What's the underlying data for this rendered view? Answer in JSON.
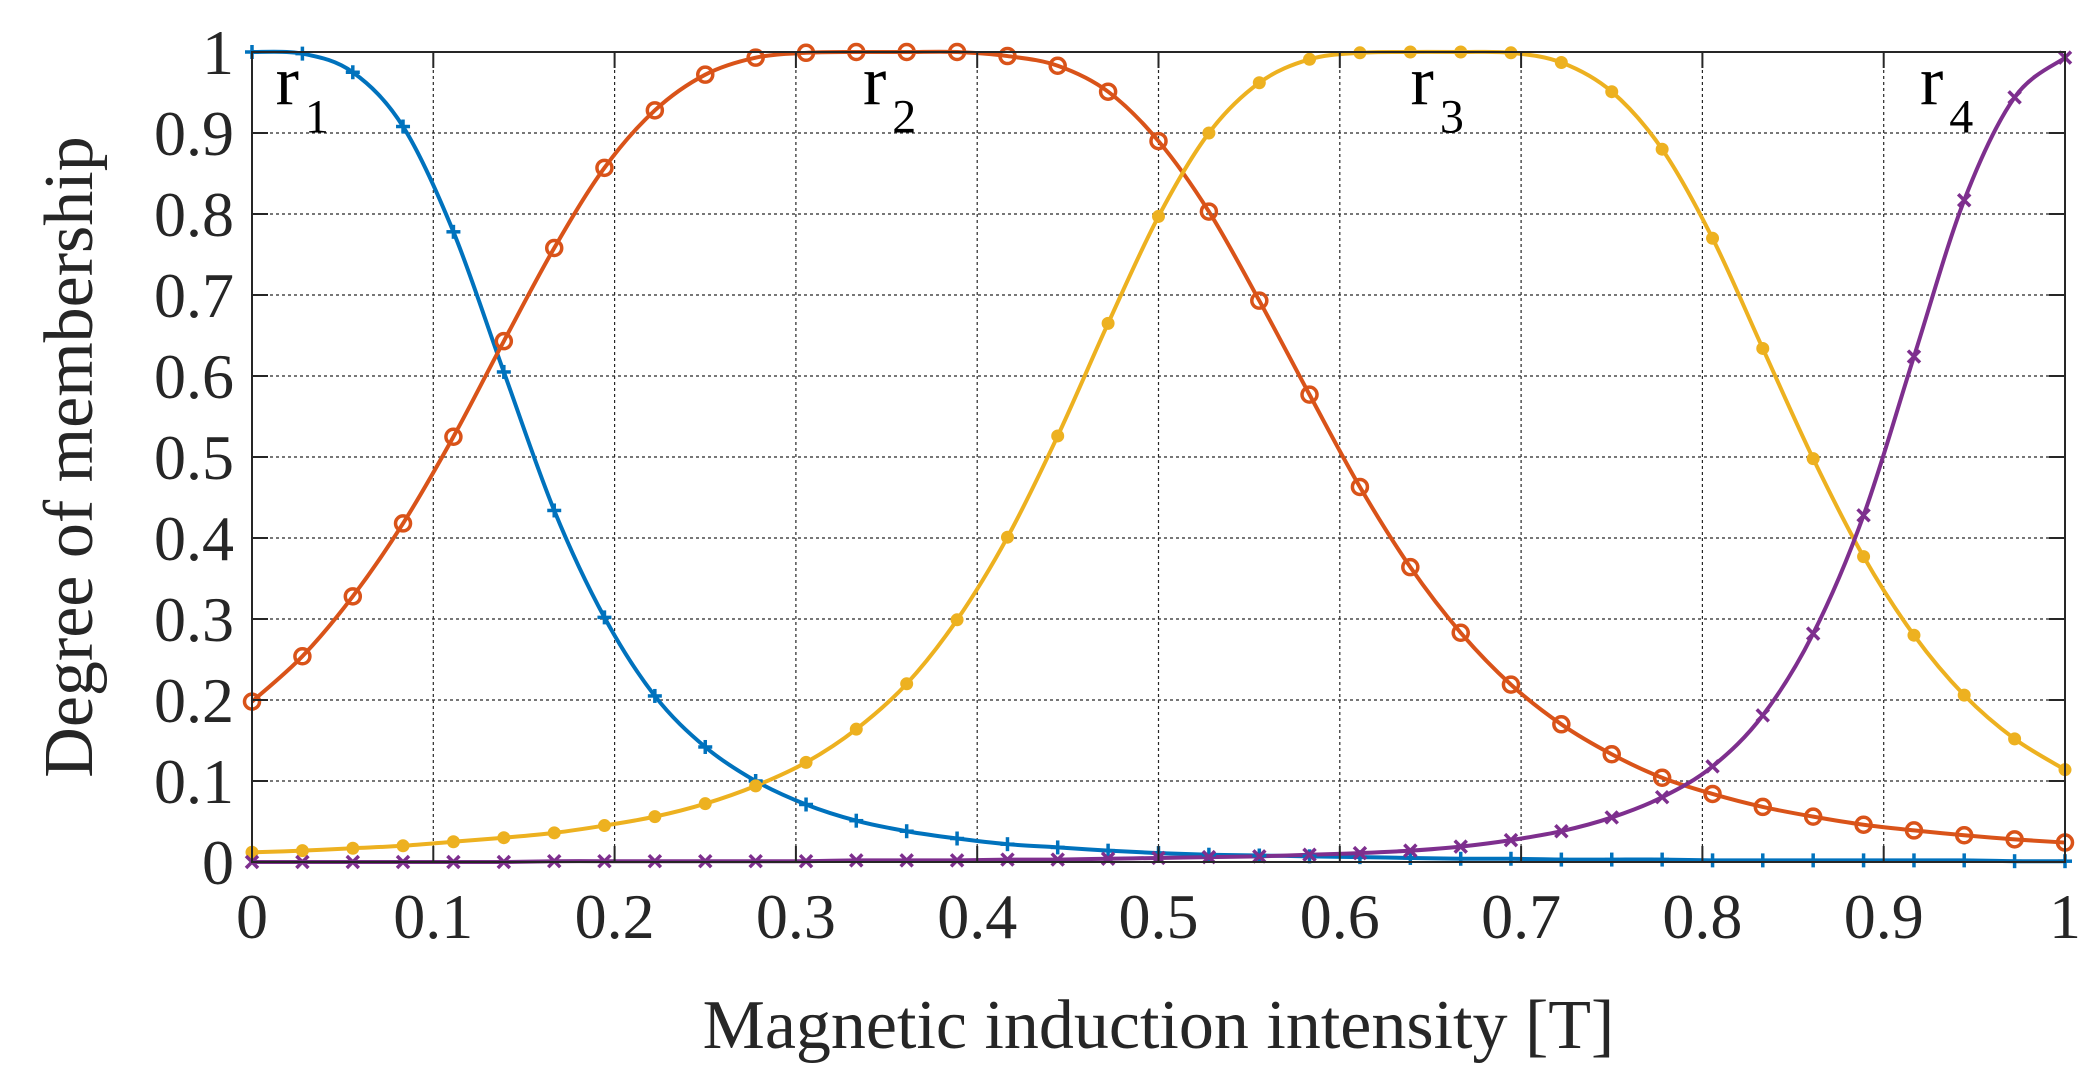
{
  "chart_data": {
    "type": "line",
    "title": "",
    "xlabel": "Magnetic induction intensity [T]",
    "ylabel": "Degree of membership",
    "xlim": [
      0,
      1
    ],
    "ylim": [
      0,
      1
    ],
    "grid": true,
    "x_ticks": [
      0,
      0.1,
      0.2,
      0.3,
      0.4,
      0.5,
      0.6,
      0.7,
      0.8,
      0.9,
      1
    ],
    "x_tick_labels": [
      "0",
      "0.1",
      "0.2",
      "0.3",
      "0.4",
      "0.5",
      "0.6",
      "0.7",
      "0.8",
      "0.9",
      "1"
    ],
    "y_ticks": [
      0,
      0.1,
      0.2,
      0.3,
      0.4,
      0.5,
      0.6,
      0.7,
      0.8,
      0.9,
      1
    ],
    "y_tick_labels": [
      "0",
      "0.1",
      "0.2",
      "0.3",
      "0.4",
      "0.5",
      "0.6",
      "0.7",
      "0.8",
      "0.9",
      "1"
    ],
    "series": [
      {
        "name": "r1",
        "label_main": "r",
        "label_sub": "1",
        "label_pos": [
          0.013,
          0.935
        ],
        "color": "#0072BD",
        "marker": "plus",
        "x": [
          0,
          0.0278,
          0.0556,
          0.0833,
          0.1111,
          0.1389,
          0.1667,
          0.1944,
          0.2222,
          0.25,
          0.2778,
          0.3056,
          0.3333,
          0.3611,
          0.3889,
          0.4167,
          0.4444,
          0.4722,
          0.5,
          0.5278,
          0.5556,
          0.5833,
          0.6111,
          0.6389,
          0.6667,
          0.6944,
          0.7222,
          0.75,
          0.7778,
          0.8056,
          0.8333,
          0.8611,
          0.8889,
          0.9167,
          0.9444,
          0.9722,
          1
        ],
        "y": [
          1.0,
          0.998,
          0.975,
          0.908,
          0.778,
          0.605,
          0.434,
          0.302,
          0.205,
          0.142,
          0.1,
          0.071,
          0.051,
          0.038,
          0.029,
          0.022,
          0.018,
          0.014,
          0.011,
          0.009,
          0.008,
          0.007,
          0.006,
          0.005,
          0.004,
          0.004,
          0.003,
          0.003,
          0.003,
          0.002,
          0.002,
          0.002,
          0.002,
          0.002,
          0.002,
          0.001,
          0.001
        ]
      },
      {
        "name": "r2",
        "label_main": "r",
        "label_sub": "2",
        "label_pos": [
          0.337,
          0.935
        ],
        "color": "#D95319",
        "marker": "circle",
        "x": [
          0,
          0.0278,
          0.0556,
          0.0833,
          0.1111,
          0.1389,
          0.1667,
          0.1944,
          0.2222,
          0.25,
          0.2778,
          0.3056,
          0.3333,
          0.3611,
          0.3889,
          0.4167,
          0.4444,
          0.4722,
          0.5,
          0.5278,
          0.5556,
          0.5833,
          0.6111,
          0.6389,
          0.6667,
          0.6944,
          0.7222,
          0.75,
          0.7778,
          0.8056,
          0.8333,
          0.8611,
          0.8889,
          0.9167,
          0.9444,
          0.9722,
          1
        ],
        "y": [
          0.198,
          0.254,
          0.328,
          0.418,
          0.525,
          0.643,
          0.758,
          0.857,
          0.928,
          0.972,
          0.993,
          0.999,
          1.0,
          1.0,
          1.0,
          0.995,
          0.983,
          0.951,
          0.89,
          0.803,
          0.693,
          0.577,
          0.463,
          0.364,
          0.283,
          0.219,
          0.17,
          0.133,
          0.104,
          0.084,
          0.068,
          0.056,
          0.046,
          0.039,
          0.033,
          0.028,
          0.024
        ]
      },
      {
        "name": "r3",
        "label_main": "r",
        "label_sub": "3",
        "label_pos": [
          0.639,
          0.935
        ],
        "color": "#EDB120",
        "marker": "dot",
        "x": [
          0,
          0.0278,
          0.0556,
          0.0833,
          0.1111,
          0.1389,
          0.1667,
          0.1944,
          0.2222,
          0.25,
          0.2778,
          0.3056,
          0.3333,
          0.3611,
          0.3889,
          0.4167,
          0.4444,
          0.4722,
          0.5,
          0.5278,
          0.5556,
          0.5833,
          0.6111,
          0.6389,
          0.6667,
          0.6944,
          0.7222,
          0.75,
          0.7778,
          0.8056,
          0.8333,
          0.8611,
          0.8889,
          0.9167,
          0.9444,
          0.9722,
          1
        ],
        "y": [
          0.012,
          0.014,
          0.017,
          0.02,
          0.025,
          0.03,
          0.036,
          0.045,
          0.056,
          0.072,
          0.094,
          0.123,
          0.164,
          0.22,
          0.299,
          0.401,
          0.526,
          0.665,
          0.797,
          0.9,
          0.962,
          0.991,
          0.999,
          1.0,
          1.0,
          0.999,
          0.987,
          0.951,
          0.88,
          0.77,
          0.634,
          0.498,
          0.377,
          0.28,
          0.206,
          0.152,
          0.114
        ]
      },
      {
        "name": "r4",
        "label_main": "r",
        "label_sub": "4",
        "label_pos": [
          0.92,
          0.935
        ],
        "color": "#7E2F8E",
        "marker": "x",
        "x": [
          0,
          0.0278,
          0.0556,
          0.0833,
          0.1111,
          0.1389,
          0.1667,
          0.1944,
          0.2222,
          0.25,
          0.2778,
          0.3056,
          0.3333,
          0.3611,
          0.3889,
          0.4167,
          0.4444,
          0.4722,
          0.5,
          0.5278,
          0.5556,
          0.5833,
          0.6111,
          0.6389,
          0.6667,
          0.6944,
          0.7222,
          0.75,
          0.7778,
          0.8056,
          0.8333,
          0.8611,
          0.8889,
          0.9167,
          0.9444,
          0.9722,
          1
        ],
        "y": [
          0.0,
          0.0,
          0.0,
          0.0,
          0.0,
          0.0,
          0.001,
          0.001,
          0.001,
          0.001,
          0.001,
          0.001,
          0.002,
          0.002,
          0.002,
          0.003,
          0.003,
          0.004,
          0.005,
          0.006,
          0.007,
          0.009,
          0.011,
          0.014,
          0.019,
          0.027,
          0.038,
          0.055,
          0.08,
          0.118,
          0.181,
          0.282,
          0.428,
          0.624,
          0.817,
          0.944,
          0.993
        ]
      }
    ]
  }
}
